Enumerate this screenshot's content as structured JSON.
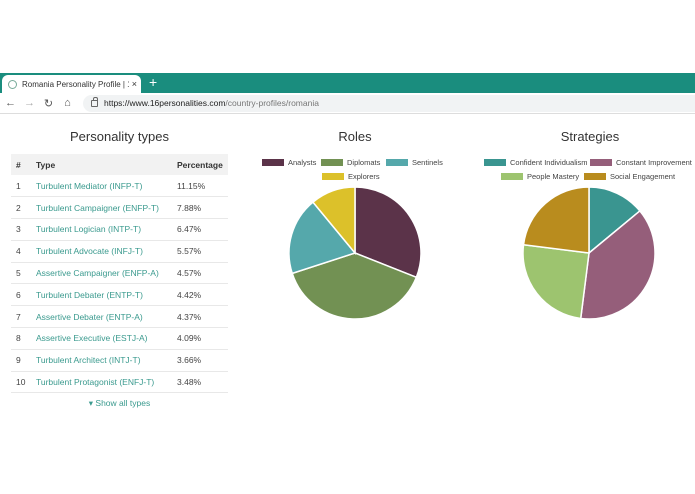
{
  "browser": {
    "tab_title": "Romania Personality Profile | 16P",
    "tab_close": "×",
    "new_tab": "+",
    "url_host": "https://www.16personalities.com",
    "url_path": "/country-profiles/romania",
    "icons": [
      "back-icon",
      "forward-icon",
      "reload-icon",
      "home-icon",
      "lock-icon"
    ]
  },
  "types": {
    "title": "Personality types",
    "headers": [
      "#",
      "Type",
      "Percentage"
    ],
    "rows": [
      {
        "rank": "1",
        "type": "Turbulent Mediator (INFP-T)",
        "pct": "11.15%"
      },
      {
        "rank": "2",
        "type": "Turbulent Campaigner (ENFP-T)",
        "pct": "7.88%"
      },
      {
        "rank": "3",
        "type": "Turbulent Logician (INTP-T)",
        "pct": "6.47%"
      },
      {
        "rank": "4",
        "type": "Turbulent Advocate (INFJ-T)",
        "pct": "5.57%"
      },
      {
        "rank": "5",
        "type": "Assertive Campaigner (ENFP-A)",
        "pct": "4.57%"
      },
      {
        "rank": "6",
        "type": "Turbulent Debater (ENTP-T)",
        "pct": "4.42%"
      },
      {
        "rank": "7",
        "type": "Assertive Debater (ENTP-A)",
        "pct": "4.37%"
      },
      {
        "rank": "8",
        "type": "Assertive Executive (ESTJ-A)",
        "pct": "4.09%"
      },
      {
        "rank": "9",
        "type": "Turbulent Architect (INTJ-T)",
        "pct": "3.66%"
      },
      {
        "rank": "10",
        "type": "Turbulent Protagonist (ENFJ-T)",
        "pct": "3.48%"
      }
    ],
    "show_all": "Show all types"
  },
  "chart_data": [
    {
      "type": "pie",
      "title": "Roles",
      "legend_position": "top",
      "series": [
        {
          "name": "Analysts",
          "value": 31,
          "color": "#5b3349"
        },
        {
          "name": "Diplomats",
          "value": 39,
          "color": "#729153"
        },
        {
          "name": "Sentinels",
          "value": 19,
          "color": "#55a8ab"
        },
        {
          "name": "Explorers",
          "value": 11,
          "color": "#dcc12a"
        }
      ]
    },
    {
      "type": "pie",
      "title": "Strategies",
      "legend_position": "top",
      "series": [
        {
          "name": "Confident Individualism",
          "value": 14,
          "color": "#3a9590"
        },
        {
          "name": "Constant Improvement",
          "value": 38,
          "color": "#955e7a"
        },
        {
          "name": "People Mastery",
          "value": 25,
          "color": "#9dc46f"
        },
        {
          "name": "Social Engagement",
          "value": 23,
          "color": "#b98c1e"
        }
      ]
    }
  ]
}
